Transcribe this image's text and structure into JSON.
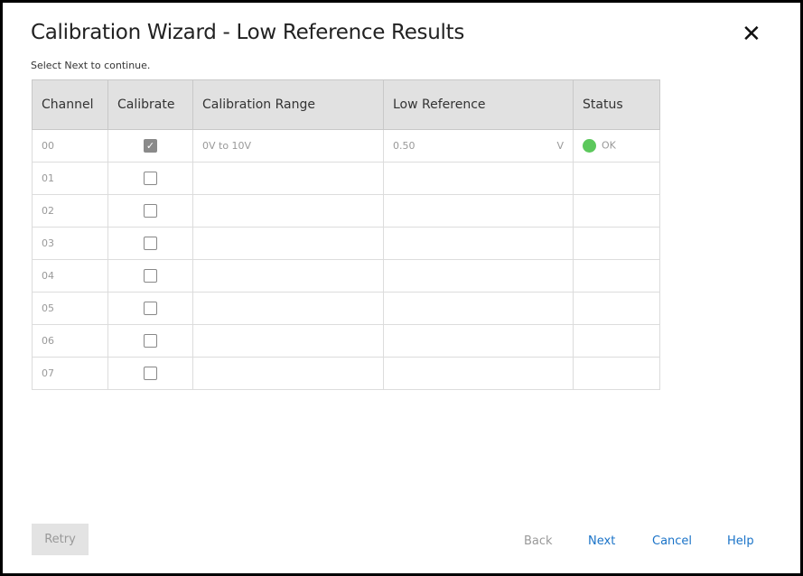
{
  "dialog": {
    "title": "Calibration Wizard -  Low Reference Results",
    "subtitle": "Select Next to continue.",
    "close_icon": "close-icon"
  },
  "table": {
    "headers": [
      "Channel",
      "Calibrate",
      "Calibration Range",
      "Low Reference",
      "Status"
    ],
    "rows": [
      {
        "channel": "00",
        "calibrate": true,
        "range": "0V to 10V",
        "low_reference": "0.50",
        "unit": "V",
        "status": "OK",
        "status_color": "#5cc85c"
      },
      {
        "channel": "01",
        "calibrate": false
      },
      {
        "channel": "02",
        "calibrate": false
      },
      {
        "channel": "03",
        "calibrate": false
      },
      {
        "channel": "04",
        "calibrate": false
      },
      {
        "channel": "05",
        "calibrate": false
      },
      {
        "channel": "06",
        "calibrate": false
      },
      {
        "channel": "07",
        "calibrate": false
      }
    ]
  },
  "footer": {
    "retry": "Retry",
    "back": "Back",
    "next": "Next",
    "cancel": "Cancel",
    "help": "Help"
  },
  "colors": {
    "link": "#1a73c8",
    "disabled": "#999999"
  }
}
